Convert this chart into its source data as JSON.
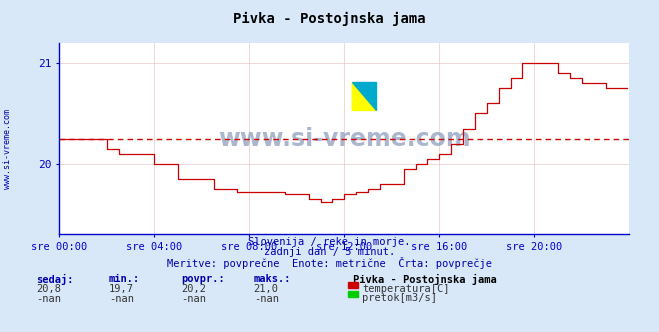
{
  "title": "Pivka - Postojnska jama",
  "background_color": "#d8e8f8",
  "plot_background": "#ffffff",
  "grid_color": "#e8c8c8",
  "x_labels": [
    "sre 00:00",
    "sre 04:00",
    "sre 08:00",
    "sre 12:00",
    "sre 16:00",
    "sre 20:00"
  ],
  "total_points": 288,
  "ylim_min": 19.3,
  "ylim_max": 21.2,
  "y_ticks": [
    20.0,
    21.0
  ],
  "avg_line": 20.25,
  "line_color": "#cc0000",
  "avg_line_color": "#cc0000",
  "axis_color": "#0000cc",
  "text_color": "#0000aa",
  "subtitle1": "Slovenija / reke in morje.",
  "subtitle2": "zadnji dan / 5 minut.",
  "subtitle3": "Meritve: povprečne  Enote: metrične  Črta: povprečje",
  "stat_headers": [
    "sedaj:",
    "min.:",
    "povpr.:",
    "maks.:"
  ],
  "stat_values_temp": [
    "20,8",
    "19,7",
    "20,2",
    "21,0"
  ],
  "stat_values_flow": [
    "-nan",
    "-nan",
    "-nan",
    "-nan"
  ],
  "legend_title": "Pivka - Postojnska jama",
  "legend_temp": "temperatura[C]",
  "legend_flow": "pretok[m3/s]",
  "temp_color": "#cc0000",
  "flow_color": "#00cc00",
  "watermark_text": "www.si-vreme.com",
  "watermark_color": "#8899bb",
  "sidebar_text": "www.si-vreme.com"
}
